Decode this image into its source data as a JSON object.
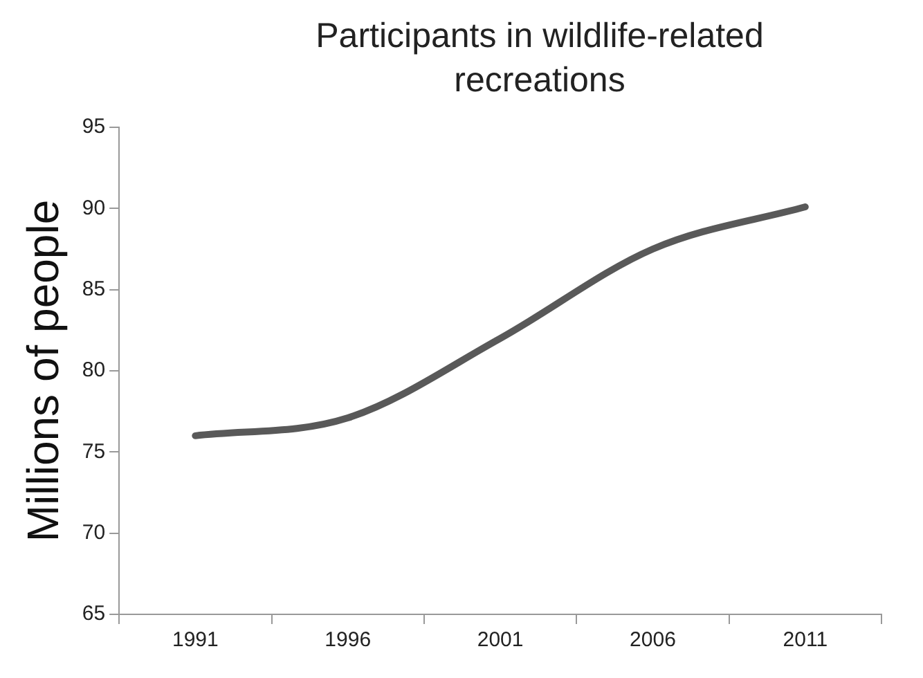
{
  "chart_data": {
    "type": "line",
    "title": "Participants in wildlife-related recreations",
    "ylabel": "Millions of people",
    "categories": [
      "1991",
      "1996",
      "2001",
      "2006",
      "2011"
    ],
    "series": [
      {
        "color": "#595959",
        "values": [
          76.0,
          77.1,
          82.0,
          87.5,
          90.1
        ]
      }
    ],
    "ylim": [
      65,
      95
    ],
    "yticks": [
      65,
      70,
      75,
      80,
      85,
      90,
      95
    ],
    "grid": false,
    "legend": false,
    "marker": "none",
    "line_style": "solid"
  }
}
